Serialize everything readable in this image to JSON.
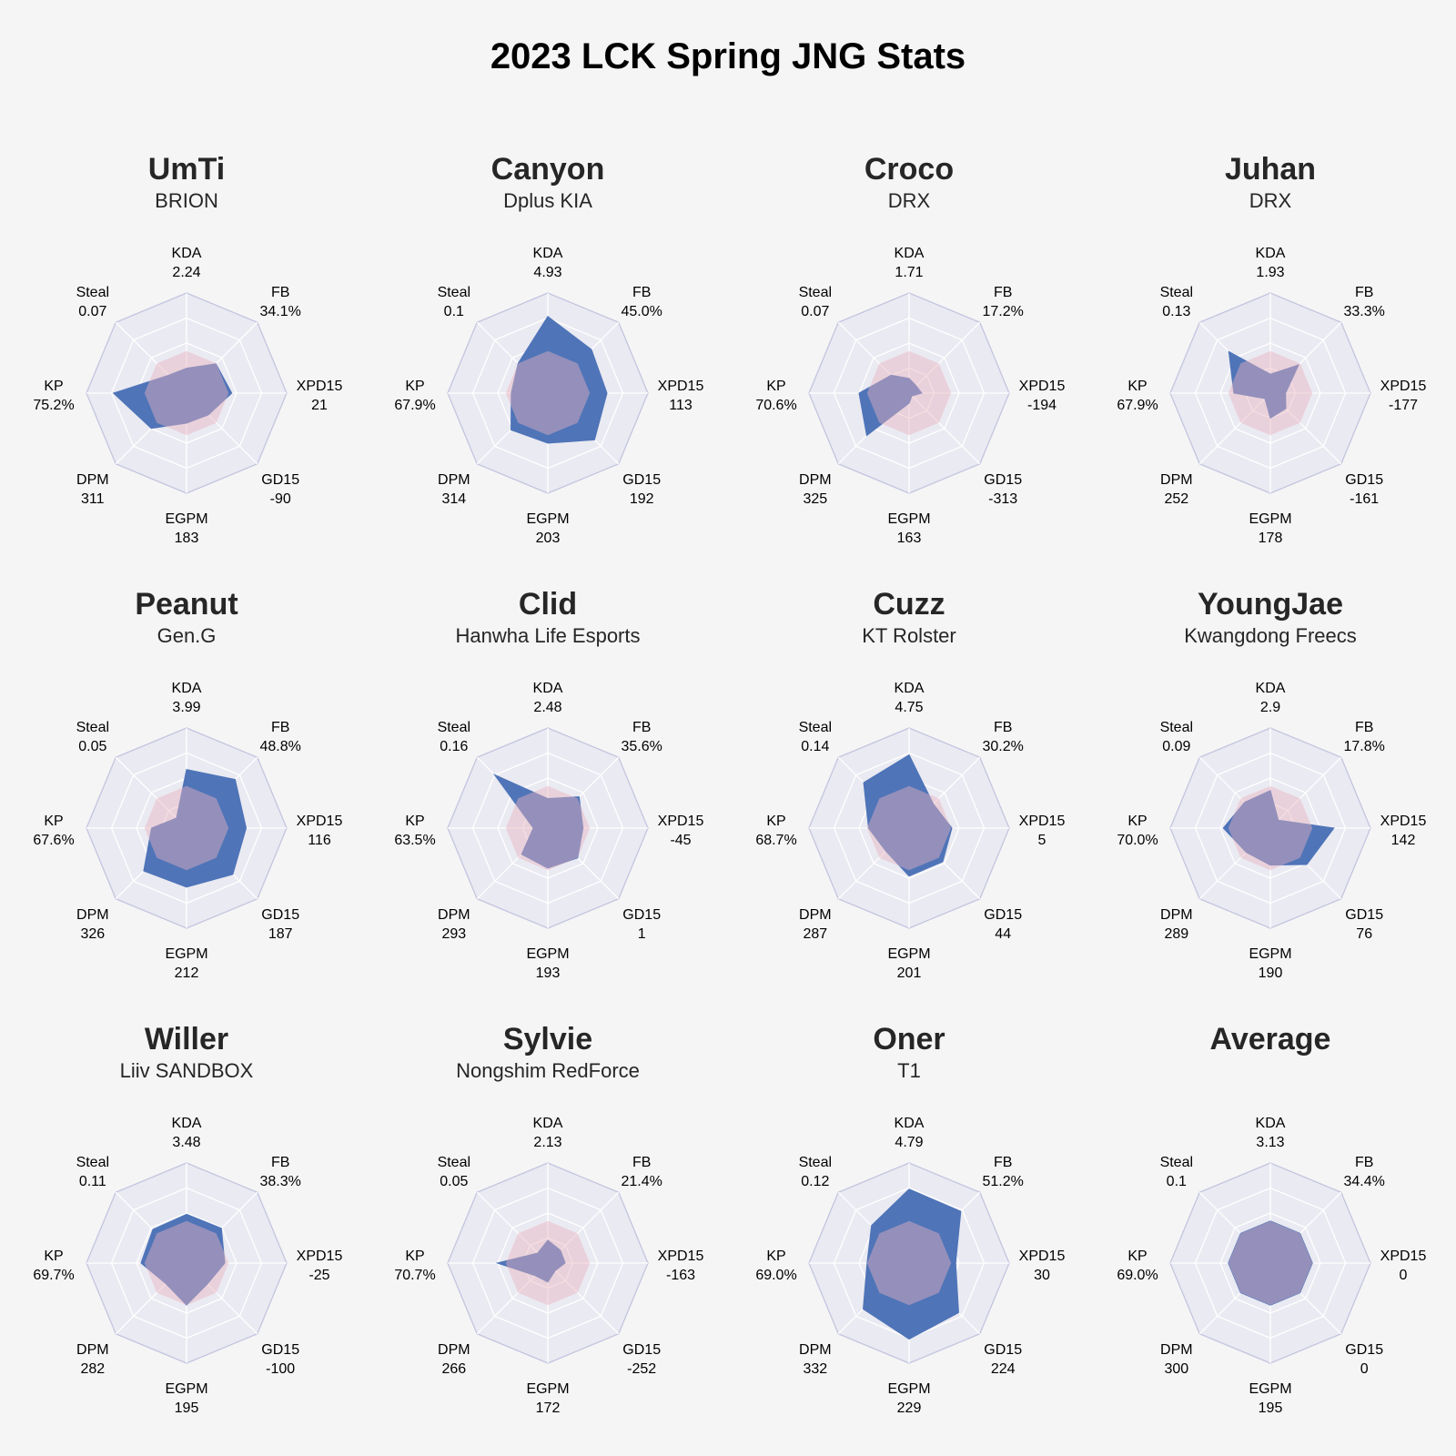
{
  "title": "2023 LCK Spring JNG Stats",
  "colors": {
    "background": "#f5f5f5",
    "polar_bg": "#eaeaf2",
    "grid": "#c4c4e0",
    "player_fill": "#4f74b8",
    "average_fill": "#e8b4bf"
  },
  "chart_data": {
    "type": "radar",
    "axes": [
      "KDA",
      "FB",
      "XPD15",
      "GD15",
      "EGPM",
      "DPM",
      "KP",
      "Steal"
    ],
    "players": [
      {
        "name": "UmTi",
        "team": "BRION",
        "labels": [
          "2.24",
          "34.1%",
          "21",
          "-90",
          "183",
          "311",
          "75.2%",
          "0.07"
        ],
        "values": [
          2.24,
          34.1,
          21,
          -90,
          183,
          311,
          75.2,
          0.07
        ]
      },
      {
        "name": "Canyon",
        "team": "Dplus KIA",
        "labels": [
          "4.93",
          "45.0%",
          "113",
          "192",
          "203",
          "314",
          "67.9%",
          "0.1"
        ],
        "values": [
          4.93,
          45.0,
          113,
          192,
          203,
          314,
          67.9,
          0.1
        ]
      },
      {
        "name": "Croco",
        "team": "DRX",
        "labels": [
          "1.71",
          "17.2%",
          "-194",
          "-313",
          "163",
          "325",
          "70.6%",
          "0.07"
        ],
        "values": [
          1.71,
          17.2,
          -194,
          -313,
          163,
          325,
          70.6,
          0.07
        ]
      },
      {
        "name": "Juhan",
        "team": "DRX",
        "labels": [
          "1.93",
          "33.3%",
          "-177",
          "-161",
          "178",
          "252",
          "67.9%",
          "0.13"
        ],
        "values": [
          1.93,
          33.3,
          -177,
          -161,
          178,
          252,
          67.9,
          0.13
        ]
      },
      {
        "name": "Peanut",
        "team": "Gen.G",
        "labels": [
          "3.99",
          "48.8%",
          "116",
          "187",
          "212",
          "326",
          "67.6%",
          "0.05"
        ],
        "values": [
          3.99,
          48.8,
          116,
          187,
          212,
          326,
          67.6,
          0.05
        ]
      },
      {
        "name": "Clid",
        "team": "Hanwha Life Esports",
        "labels": [
          "2.48",
          "35.6%",
          "-45",
          "1",
          "193",
          "293",
          "63.5%",
          "0.16"
        ],
        "values": [
          2.48,
          35.6,
          -45,
          1,
          193,
          293,
          63.5,
          0.16
        ]
      },
      {
        "name": "Cuzz",
        "team": "KT Rolster",
        "labels": [
          "4.75",
          "30.2%",
          "5",
          "44",
          "201",
          "287",
          "68.7%",
          "0.14"
        ],
        "values": [
          4.75,
          30.2,
          5,
          44,
          201,
          287,
          68.7,
          0.14
        ]
      },
      {
        "name": "YoungJae",
        "team": "Kwangdong Freecs",
        "labels": [
          "2.9",
          "17.8%",
          "142",
          "76",
          "190",
          "289",
          "70.0%",
          "0.09"
        ],
        "values": [
          2.9,
          17.8,
          142,
          76,
          190,
          289,
          70.0,
          0.09
        ]
      },
      {
        "name": "Willer",
        "team": "Liiv SANDBOX",
        "labels": [
          "3.48",
          "38.3%",
          "-25",
          "-100",
          "195",
          "282",
          "69.7%",
          "0.11"
        ],
        "values": [
          3.48,
          38.3,
          -25,
          -100,
          195,
          282,
          69.7,
          0.11
        ]
      },
      {
        "name": "Sylvie",
        "team": "Nongshim RedForce",
        "labels": [
          "2.13",
          "21.4%",
          "-163",
          "-252",
          "172",
          "266",
          "70.7%",
          "0.05"
        ],
        "values": [
          2.13,
          21.4,
          -163,
          -252,
          172,
          266,
          70.7,
          0.05
        ]
      },
      {
        "name": "Oner",
        "team": "T1",
        "labels": [
          "4.79",
          "51.2%",
          "30",
          "224",
          "229",
          "332",
          "69.0%",
          "0.12"
        ],
        "values": [
          4.79,
          51.2,
          30,
          224,
          229,
          332,
          69.0,
          0.12
        ]
      },
      {
        "name": "Average",
        "team": "",
        "labels": [
          "3.13",
          "34.4%",
          "0",
          "0",
          "195",
          "300",
          "69.0%",
          "0.1"
        ],
        "values": [
          3.13,
          34.4,
          0,
          0,
          195,
          300,
          69.0,
          0.1
        ]
      }
    ],
    "average_index": 11
  }
}
